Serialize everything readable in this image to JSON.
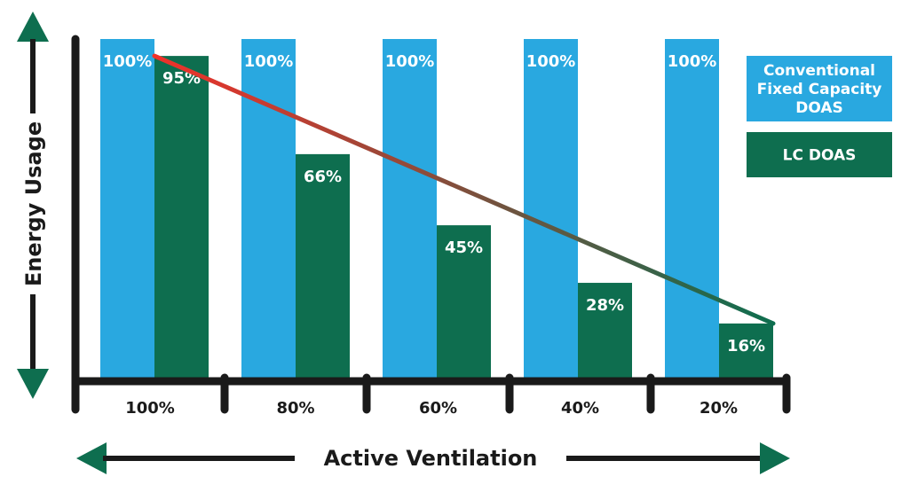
{
  "chart_data": {
    "type": "bar",
    "title": "",
    "xlabel": "Active Ventilation",
    "ylabel": "Energy Usage",
    "categories": [
      "100%",
      "80%",
      "60%",
      "40%",
      "20%"
    ],
    "series": [
      {
        "name": "Conventional Fixed Capacity DOAS",
        "legend_lines": [
          "Conventional",
          "Fixed Capacity",
          "DOAS"
        ],
        "color": "#29a8e0",
        "values": [
          100,
          100,
          100,
          100,
          100
        ],
        "labels": [
          "100%",
          "100%",
          "100%",
          "100%",
          "100%"
        ]
      },
      {
        "name": "LC DOAS",
        "legend_lines": [
          "LC DOAS"
        ],
        "color": "#0e6e4f",
        "values": [
          95,
          66,
          45,
          28,
          16
        ],
        "labels": [
          "95%",
          "66%",
          "45%",
          "28%",
          "16%"
        ]
      }
    ],
    "ylim": [
      0,
      100
    ],
    "grid": false,
    "legend_position": "right",
    "trend_line": {
      "series": "LC DOAS",
      "color_start": "#f0312a",
      "color_end": "#0e6e4f"
    },
    "axis_color": "#1a1a1a",
    "arrow_color": "#0e6e4f"
  }
}
